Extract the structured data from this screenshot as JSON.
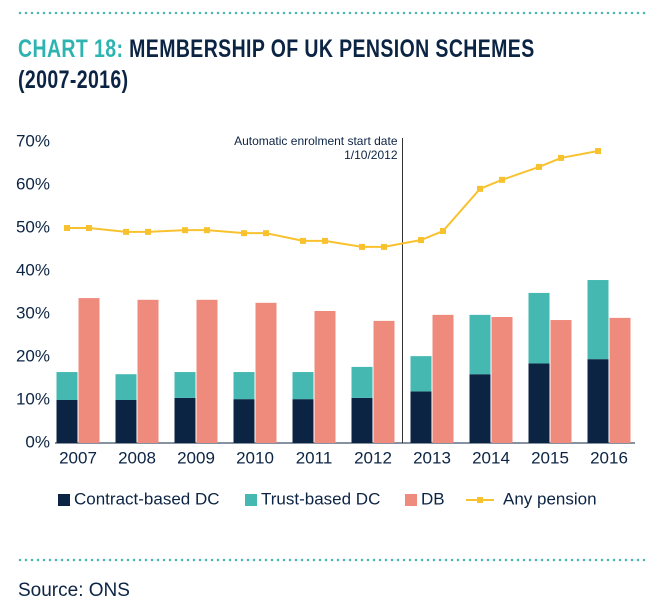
{
  "chart_data": {
    "type": "bar",
    "title_label": "CHART 18:",
    "title": "MEMBERSHIP OF UK PENSION SCHEMES (2007-2016)",
    "categories": [
      "2007",
      "2008",
      "2009",
      "2010",
      "2011",
      "2012",
      "2013",
      "2014",
      "2015",
      "2016"
    ],
    "series": [
      {
        "name": "Contract-based DC",
        "color": "#0c2444",
        "stack": "DC",
        "values": [
          10,
          10,
          10.5,
          10.2,
          10.2,
          10.5,
          12,
          16,
          18.5,
          19.5
        ]
      },
      {
        "name": "Trust-based DC",
        "color": "#45b8b1",
        "stack": "DC",
        "values": [
          6.5,
          6,
          6,
          6.3,
          6.3,
          7.2,
          8.2,
          13.8,
          16.4,
          18.4
        ]
      },
      {
        "name": "DB",
        "color": "#ef8b7d",
        "stack": "DB",
        "values": [
          33.7,
          33.3,
          33.3,
          32.6,
          30.7,
          28.4,
          29.8,
          29.3,
          28.6,
          29.1
        ]
      }
    ],
    "line_series": {
      "name": "Any pension",
      "color": "#f8c22f",
      "values": [
        50,
        50,
        49.1,
        49.1,
        49.5,
        49.5,
        48.8,
        48.8,
        47,
        47,
        45.6,
        45.6,
        47.2,
        49.3,
        59.1,
        61.2,
        64.2,
        66.3,
        67.9,
        null
      ]
    },
    "annotation": [
      "Automatic enrolment start date",
      "1/10/2012"
    ],
    "ylim": [
      0,
      70
    ],
    "yticks": [
      {
        "value": 0,
        "label": "0%"
      },
      {
        "value": 10,
        "label": "10%"
      },
      {
        "value": 20,
        "label": "20%"
      },
      {
        "value": 30,
        "label": "30%"
      },
      {
        "value": 40,
        "label": "40%"
      },
      {
        "value": 50,
        "label": "50%"
      },
      {
        "value": 60,
        "label": "60%"
      },
      {
        "value": 70,
        "label": "70%"
      }
    ],
    "grid": false,
    "source": "Source: ONS"
  }
}
